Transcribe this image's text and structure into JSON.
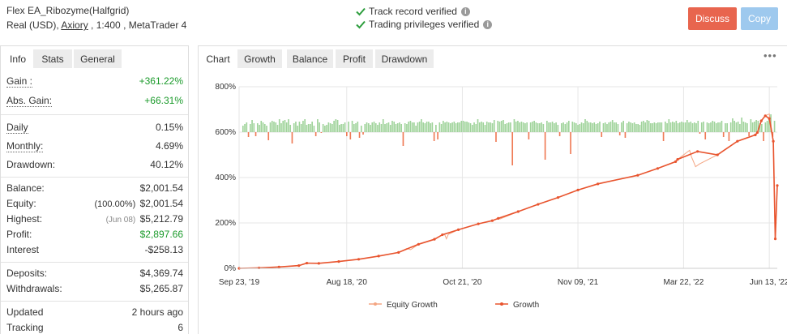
{
  "header": {
    "account_name": "Flex EA_Ribozyme(Halfgrid)",
    "account_sub_prefix": "Real (USD), ",
    "broker": "Axiory",
    "account_sub_suffix": " , 1:400 , MetaTrader 4",
    "verified_track": "Track record verified",
    "verified_trading": "Trading privileges verified",
    "help_glyph": "i",
    "discuss_label": "Discuss",
    "copy_label": "Copy",
    "discuss_color": "#e8654e",
    "copy_color": "#9ec9ee",
    "check_icon": "check-icon",
    "check_color": "#2e9e3e"
  },
  "left_tabs": [
    "Info",
    "Stats",
    "General"
  ],
  "stats": {
    "gain_label": "Gain :",
    "gain_value": "+361.22%",
    "abs_gain_label": "Abs. Gain:",
    "abs_gain_value": "+66.31%",
    "daily_label": "Daily",
    "daily_value": "0.15%",
    "monthly_label": "Monthly:",
    "monthly_value": "4.69%",
    "drawdown_label": "Drawdown:",
    "drawdown_value": "40.12%",
    "balance_label": "Balance:",
    "balance_value": "$2,001.54",
    "equity_label": "Equity:",
    "equity_note": "(100.00%)",
    "equity_value": "$2,001.54",
    "highest_label": "Highest:",
    "highest_note": "(Jun 08)",
    "highest_value": "$5,212.79",
    "profit_label": "Profit:",
    "profit_value": "$2,897.66",
    "interest_label": "Interest",
    "interest_value": "-$258.13",
    "deposits_label": "Deposits:",
    "deposits_value": "$4,369.74",
    "withdrawals_label": "Withdrawals:",
    "withdrawals_value": "$5,265.87",
    "updated_label": "Updated",
    "updated_value": "2 hours ago",
    "tracking_label": "Tracking",
    "tracking_value": "6"
  },
  "chart_tabs": [
    "Chart",
    "Growth",
    "Balance",
    "Profit",
    "Drawdown"
  ],
  "more_label": "•••",
  "chart_data": {
    "type": "line",
    "title": "",
    "xlabel": "",
    "ylabel": "",
    "y_ticks": [
      "0%",
      "200%",
      "400%",
      "600%",
      "800%"
    ],
    "ylim": [
      0,
      800
    ],
    "x_ticks": [
      "Sep 23, '19",
      "Aug 18, '20",
      "Oct 21, '20",
      "Nov 09, '21",
      "Mar 22, '22",
      "Jun 13, '22"
    ],
    "grid": true,
    "legend_position": "bottom",
    "series": [
      {
        "name": "Equity Growth",
        "color": "#f4a582",
        "points": [
          [
            0,
            0
          ],
          [
            10,
            2
          ],
          [
            20,
            6
          ],
          [
            30,
            12
          ],
          [
            34,
            23
          ],
          [
            40,
            22
          ],
          [
            50,
            30
          ],
          [
            60,
            40
          ],
          [
            70,
            54
          ],
          [
            80,
            70
          ],
          [
            84,
            87
          ],
          [
            85,
            85
          ],
          [
            86,
            82
          ],
          [
            90,
            106
          ],
          [
            98,
            128
          ],
          [
            102,
            148
          ],
          [
            103,
            152
          ],
          [
            104,
            130
          ],
          [
            105,
            150
          ],
          [
            110,
            170
          ],
          [
            120,
            196
          ],
          [
            127,
            210
          ],
          [
            130,
            220
          ],
          [
            131,
            218
          ],
          [
            140,
            250
          ],
          [
            150,
            282
          ],
          [
            160,
            312
          ],
          [
            170,
            345
          ],
          [
            180,
            372
          ],
          [
            200,
            410
          ],
          [
            210,
            440
          ],
          [
            219,
            470
          ],
          [
            220,
            480
          ],
          [
            226,
            520
          ],
          [
            227,
            490
          ],
          [
            228,
            470
          ],
          [
            229,
            448
          ],
          [
            231,
            460
          ],
          [
            240,
            500
          ],
          [
            250,
            560
          ],
          [
            259,
            588
          ],
          [
            260,
            598
          ],
          [
            262,
            650
          ],
          [
            264,
            672
          ],
          [
            266,
            680
          ],
          [
            268,
            560
          ],
          [
            269,
            130
          ],
          [
            270,
            365
          ]
        ]
      },
      {
        "name": "Growth",
        "color": "#e8542e",
        "points": [
          [
            0,
            0
          ],
          [
            10,
            2
          ],
          [
            20,
            6
          ],
          [
            30,
            12
          ],
          [
            34,
            23
          ],
          [
            40,
            22
          ],
          [
            50,
            30
          ],
          [
            60,
            40
          ],
          [
            70,
            54
          ],
          [
            80,
            70
          ],
          [
            90,
            106
          ],
          [
            98,
            128
          ],
          [
            102,
            148
          ],
          [
            110,
            170
          ],
          [
            120,
            196
          ],
          [
            127,
            210
          ],
          [
            130,
            220
          ],
          [
            140,
            250
          ],
          [
            150,
            282
          ],
          [
            160,
            312
          ],
          [
            170,
            345
          ],
          [
            180,
            372
          ],
          [
            200,
            410
          ],
          [
            210,
            440
          ],
          [
            219,
            470
          ],
          [
            220,
            480
          ],
          [
            230,
            515
          ],
          [
            240,
            500
          ],
          [
            250,
            560
          ],
          [
            259,
            588
          ],
          [
            260,
            598
          ],
          [
            262,
            650
          ],
          [
            264,
            672
          ],
          [
            266,
            660
          ],
          [
            268,
            560
          ],
          [
            269,
            130
          ],
          [
            270,
            365
          ]
        ]
      }
    ],
    "x_tick_positions": [
      0,
      54,
      112,
      170,
      223,
      266
    ],
    "x_max": 270,
    "daily_bars": [
      8,
      10,
      12,
      -6,
      10,
      15,
      11,
      -5,
      11,
      9,
      14,
      12,
      10,
      8,
      -10,
      12,
      14,
      13,
      12,
      9,
      16,
      11,
      14,
      15,
      12,
      16,
      9,
      -14,
      11,
      13,
      8,
      13,
      10,
      14,
      16,
      9,
      10,
      10,
      13,
      8,
      -5,
      16,
      12,
      -1,
      10,
      8,
      9,
      12,
      11,
      10,
      14,
      16,
      15,
      9,
      10,
      10,
      12,
      -5,
      13,
      -9,
      14,
      10,
      11,
      13,
      -7,
      8,
      -3,
      10,
      12,
      11,
      9,
      12,
      13,
      11,
      9,
      12,
      10,
      16,
      10,
      11,
      12,
      9,
      14,
      13,
      10,
      11,
      12,
      10,
      -17,
      11,
      10,
      13,
      14,
      12,
      12,
      8,
      12,
      13,
      16,
      12,
      11,
      13,
      13,
      11,
      12,
      -11,
      9,
      -9,
      12,
      10,
      14,
      12,
      13,
      12,
      11,
      12,
      13,
      11,
      12,
      12,
      14,
      14,
      13,
      13,
      12,
      11,
      9,
      12,
      10,
      16,
      12,
      13,
      12,
      9,
      13,
      12,
      12,
      11,
      15,
      -12,
      14,
      13,
      14,
      15,
      10,
      11,
      12,
      12,
      -41,
      16,
      13,
      14,
      12,
      13,
      12,
      11,
      12,
      -9,
      12,
      13,
      14,
      12,
      11,
      11,
      12,
      10,
      -34,
      14,
      12,
      12,
      13,
      11,
      12,
      9,
      -5,
      11,
      12,
      10,
      12,
      14,
      -27,
      13,
      12,
      11,
      9,
      10,
      12,
      11,
      16,
      14,
      12,
      12,
      11,
      12,
      10,
      11,
      13,
      -6,
      11,
      12,
      10,
      12,
      13,
      15,
      12,
      12,
      10,
      -4,
      12,
      14,
      -7,
      11,
      13,
      12,
      11,
      12,
      10,
      10,
      9,
      13,
      14,
      12,
      15,
      14,
      11,
      11,
      12,
      11,
      12,
      12,
      12,
      -11,
      13,
      11,
      16,
      12,
      13,
      12,
      14,
      11,
      12,
      13,
      12,
      12,
      15,
      12,
      13,
      11,
      12,
      11,
      14,
      -2,
      12,
      13,
      -9,
      12,
      11,
      12,
      14,
      13,
      11,
      12,
      12,
      14,
      -6,
      11,
      11,
      -11,
      12,
      17,
      14,
      12,
      13,
      10,
      18,
      13,
      12,
      11,
      -5,
      16,
      12,
      13,
      15,
      14,
      11,
      10,
      -11,
      12,
      14,
      17,
      22,
      -6,
      14
    ]
  }
}
